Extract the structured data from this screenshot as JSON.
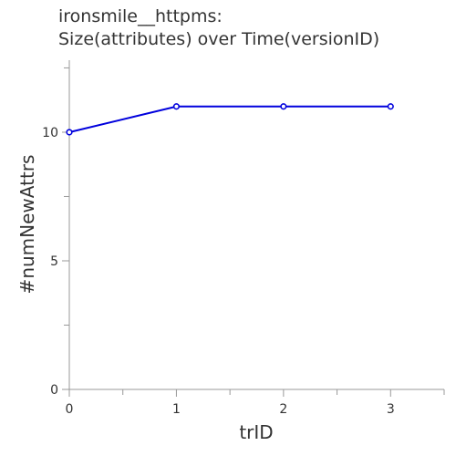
{
  "chart_data": {
    "type": "line",
    "title_line1": "ironsmile__httpms:",
    "title_line2": "Size(attributes) over Time(versionID)",
    "xlabel": "trID",
    "ylabel": "#numNewAttrs",
    "x": [
      0,
      1,
      2,
      3
    ],
    "series": [
      {
        "values": [
          10,
          11,
          11,
          11
        ],
        "color": "#0000dd"
      }
    ],
    "xlim": [
      0,
      3.5
    ],
    "ylim": [
      0,
      12.8
    ],
    "xticks": [
      0,
      1,
      2,
      3
    ],
    "yticks": [
      0,
      5,
      10
    ],
    "grid": false,
    "axis_color": "#999999",
    "text_color": "#333333"
  }
}
